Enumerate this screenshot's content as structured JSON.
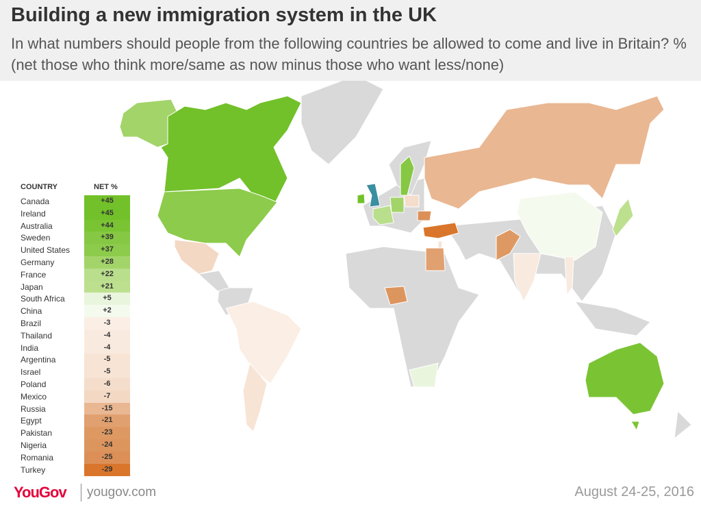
{
  "header": {
    "title": "Building a new immigration system in the UK",
    "subtitle": "In what numbers should people from the following countries be allowed to come and live in Britain? % (net those who think more/same as now minus those who want less/none)"
  },
  "table": {
    "columns": [
      "COUNTRY",
      "NET %"
    ],
    "rows": [
      {
        "country": "Canada",
        "net": "+45",
        "color": "#72c12a"
      },
      {
        "country": "Ireland",
        "net": "+45",
        "color": "#72c12a"
      },
      {
        "country": "Australia",
        "net": "+44",
        "color": "#7ac434"
      },
      {
        "country": "Sweden",
        "net": "+39",
        "color": "#86c843"
      },
      {
        "country": "United States",
        "net": "+37",
        "color": "#8ccb4b"
      },
      {
        "country": "Germany",
        "net": "+28",
        "color": "#a3d46a"
      },
      {
        "country": "France",
        "net": "+22",
        "color": "#b9de8c"
      },
      {
        "country": "Japan",
        "net": "+21",
        "color": "#bde08f"
      },
      {
        "country": "South Africa",
        "net": "+5",
        "color": "#eaf5de"
      },
      {
        "country": "China",
        "net": "+2",
        "color": "#f5faef"
      },
      {
        "country": "Brazil",
        "net": "-3",
        "color": "#fbeee4"
      },
      {
        "country": "Thailand",
        "net": "-4",
        "color": "#f9eadf"
      },
      {
        "country": "India",
        "net": "-4",
        "color": "#f9eadf"
      },
      {
        "country": "Argentina",
        "net": "-5",
        "color": "#f7e4d5"
      },
      {
        "country": "Israel",
        "net": "-5",
        "color": "#f7e4d5"
      },
      {
        "country": "Poland",
        "net": "-6",
        "color": "#f5ddcb"
      },
      {
        "country": "Mexico",
        "net": "-7",
        "color": "#f3d8c4"
      },
      {
        "country": "Russia",
        "net": "-15",
        "color": "#e9b792"
      },
      {
        "country": "Egypt",
        "net": "-21",
        "color": "#e1a06f"
      },
      {
        "country": "Pakistan",
        "net": "-23",
        "color": "#de9963"
      },
      {
        "country": "Nigeria",
        "net": "-24",
        "color": "#dd955e"
      },
      {
        "country": "Romania",
        "net": "-25",
        "color": "#dc9058"
      },
      {
        "country": "Turkey",
        "net": "-29",
        "color": "#d9762b"
      }
    ]
  },
  "footer": {
    "logo": "YouGov",
    "site": "yougov.com",
    "date": "August 24-25, 2016"
  }
}
